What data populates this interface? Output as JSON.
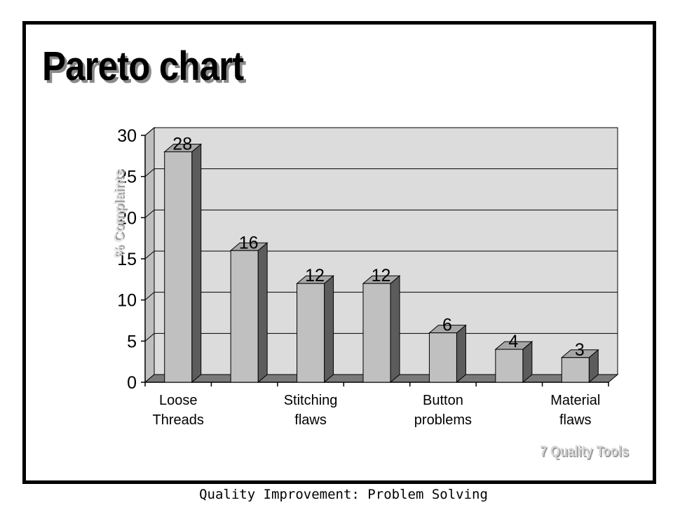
{
  "slide": {
    "title": "Pareto chart",
    "watermark": "7 Quality Tools",
    "footer": "Quality Improvement: Problem Solving"
  },
  "chart_data": {
    "type": "bar",
    "style": "3d",
    "title": "",
    "ylabel": "% Complaints",
    "xlabel": "",
    "categories": [
      "Loose Threads",
      "",
      "Stitching flaws",
      "",
      "Button problems",
      "",
      "Material flaws"
    ],
    "category_label_lines": [
      [
        "Loose",
        "Threads"
      ],
      [],
      [
        "Stitching",
        "flaws"
      ],
      [],
      [
        "Button",
        "problems"
      ],
      [],
      [
        "Material",
        "flaws"
      ]
    ],
    "values": [
      28,
      16,
      12,
      12,
      6,
      4,
      3
    ],
    "data_labels": [
      "28",
      "16",
      "12",
      "12",
      "6",
      "4",
      "3"
    ],
    "ylim": [
      0,
      30
    ],
    "yticks": [
      0,
      5,
      10,
      15,
      20,
      25,
      30
    ],
    "grid": true,
    "legend": "none",
    "colors": {
      "bar_front": "#c0c0c0",
      "bar_top": "#a6a6a6",
      "bar_side": "#5c5c5c",
      "plot_wall": "#dcdcdc",
      "floor": "#7a7a7a",
      "gridline": "#000000"
    }
  }
}
